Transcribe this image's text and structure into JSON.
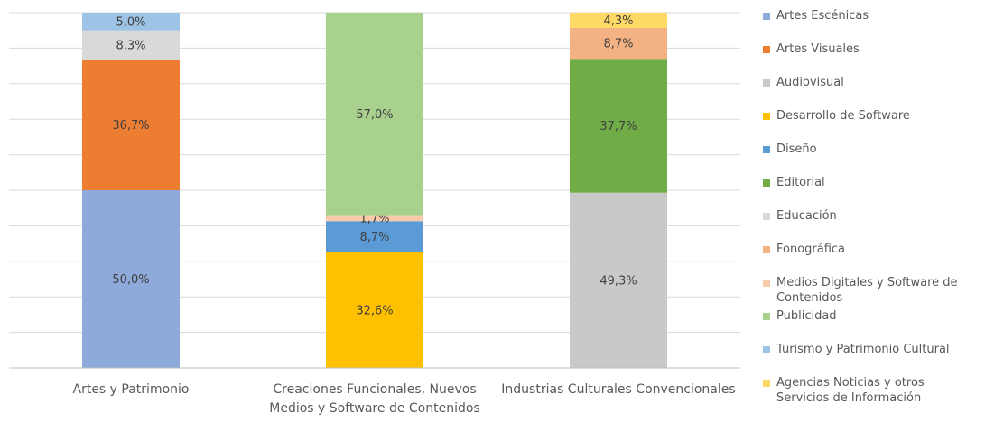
{
  "chart_data": {
    "type": "stacked_bar",
    "categories": [
      "Artes y Patrimonio",
      "Creaciones Funcionales, Nuevos Medios y Software de Contenidos",
      "Industrias Culturales Convencionales"
    ],
    "ylim": [
      0,
      100
    ],
    "yticks": [
      0,
      10,
      20,
      30,
      40,
      50,
      60,
      70,
      80,
      90,
      100
    ],
    "grid": true,
    "series": [
      {
        "name": "Artes Escénicas",
        "color": "#8eaadb",
        "values": [
          50.0,
          null,
          null
        ],
        "value_labels": [
          "50,0%",
          null,
          null
        ]
      },
      {
        "name": "Artes Visuales",
        "color": "#ed7d31",
        "values": [
          36.7,
          null,
          null
        ],
        "value_labels": [
          "36,7%",
          null,
          null
        ]
      },
      {
        "name": "Audiovisual",
        "color": "#c9c9c9",
        "values": [
          null,
          null,
          49.3
        ],
        "value_labels": [
          null,
          null,
          "49,3%"
        ]
      },
      {
        "name": "Desarrollo de Software",
        "color": "#ffc000",
        "values": [
          null,
          32.6,
          null
        ],
        "value_labels": [
          null,
          "32,6%",
          null
        ]
      },
      {
        "name": "Diseño",
        "color": "#5b9bd5",
        "values": [
          null,
          8.7,
          null
        ],
        "value_labels": [
          null,
          "8,7%",
          null
        ]
      },
      {
        "name": "Editorial",
        "color": "#70ad47",
        "values": [
          null,
          null,
          37.7
        ],
        "value_labels": [
          null,
          null,
          "37,7%"
        ]
      },
      {
        "name": "Educación",
        "color": "#d9d9d9",
        "values": [
          8.3,
          null,
          null
        ],
        "value_labels": [
          "8,3%",
          null,
          null
        ]
      },
      {
        "name": "Fonográfica",
        "color": "#f4b183",
        "values": [
          null,
          null,
          8.7
        ],
        "value_labels": [
          null,
          null,
          "8,7%"
        ]
      },
      {
        "name": "Medios Digitales y Software de Contenidos",
        "color": "#f8cbad",
        "values": [
          null,
          1.7,
          null
        ],
        "value_labels": [
          null,
          "1,7%",
          null
        ]
      },
      {
        "name": "Publicidad",
        "color": "#a9d18e",
        "values": [
          null,
          57.0,
          null
        ],
        "value_labels": [
          null,
          "57,0%",
          null
        ]
      },
      {
        "name": "Turismo y Patrimonio Cultural",
        "color": "#9dc3e6",
        "values": [
          5.0,
          null,
          null
        ],
        "value_labels": [
          "5,0%",
          null,
          null
        ]
      },
      {
        "name": "Agencias Noticias y otros Servicios de Información",
        "color": "#ffd966",
        "values": [
          null,
          null,
          4.3
        ],
        "value_labels": [
          null,
          null,
          "4,3%"
        ]
      }
    ]
  }
}
